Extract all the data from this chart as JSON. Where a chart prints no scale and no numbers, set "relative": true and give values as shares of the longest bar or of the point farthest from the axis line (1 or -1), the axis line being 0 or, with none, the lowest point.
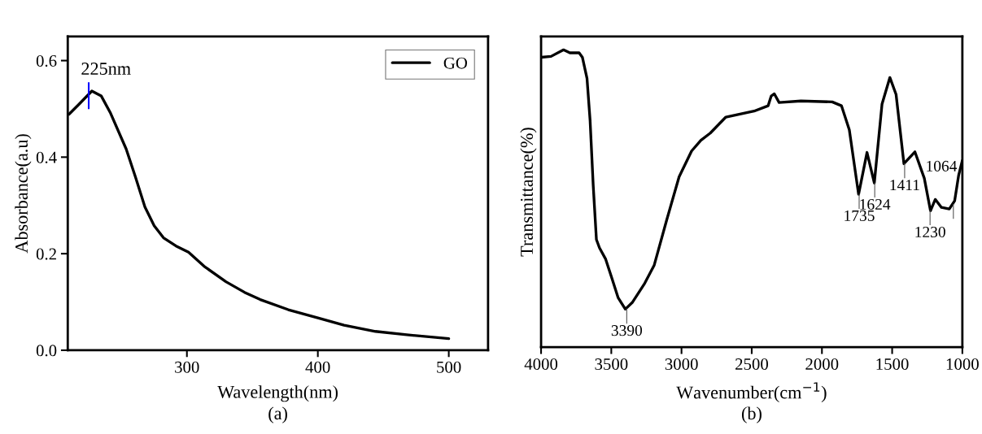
{
  "chart_data": [
    {
      "type": "line",
      "xlabel": "Wavelength(nm)",
      "ylabel": "Absorbance(a.u)",
      "xlim": [
        209,
        530
      ],
      "xticks": [
        300,
        400,
        500
      ],
      "ylim": [
        0,
        0.65
      ],
      "yticks": [
        {
          "value": 0,
          "label": "0.0"
        },
        0.2,
        0.4,
        0.6
      ],
      "grid": false,
      "legend": "top right",
      "marker": "none",
      "line_style": "solid",
      "series": [
        {
          "name": "GO",
          "color": "#000000",
          "x": [
            210,
            216.7,
            227.4,
            234.5,
            241.7,
            253.6,
            260.7,
            267.9,
            275,
            282.1,
            291.7,
            301.2,
            313.1,
            329.8,
            344,
            356,
            377.4,
            400,
            420,
            444,
            467.9,
            500
          ],
          "values": [
            0.489,
            0.507,
            0.537,
            0.527,
            0.491,
            0.417,
            0.359,
            0.297,
            0.258,
            0.233,
            0.216,
            0.203,
            0.174,
            0.142,
            0.12,
            0.105,
            0.084,
            0.067,
            0.052,
            0.039,
            0.032,
            0.024
          ]
        }
      ],
      "annotations": [
        {
          "text": "225nm",
          "x": 225,
          "y": 0.537
        },
        "(a)"
      ]
    },
    {
      "type": "line",
      "relative": true,
      "xlabel": "Wavenumber(cm$^{−1}$)",
      "ylabel": "Transmittance(%)",
      "tick_labels": "x",
      "xlim": [
        4000,
        1000
      ],
      "xticks": [
        4000,
        3500,
        3000,
        2500,
        2000,
        1500,
        1000
      ],
      "grid": false,
      "marker": "none",
      "line_style": "solid",
      "series": [
        {
          "color": "#000000",
          "x": [
            4000,
            3929,
            3840,
            3795,
            3729,
            3706,
            3673,
            3651,
            3629,
            3606,
            3584,
            3540,
            3495,
            3451,
            3400,
            3351,
            3262,
            3195,
            3106,
            3017,
            2928,
            2862,
            2795,
            2684,
            2483,
            2383,
            2361,
            2339,
            2305,
            2150,
            1927,
            1861,
            1805,
            1739,
            1679,
            1627,
            1572,
            1516,
            1472,
            1416,
            1338,
            1271,
            1227,
            1193,
            1149,
            1093,
            1055,
            1026,
            1000
          ],
          "values": [
            0.975,
            0.978,
            1,
            0.99,
            0.99,
            0.975,
            0.904,
            0.763,
            0.546,
            0.362,
            0.334,
            0.296,
            0.231,
            0.166,
            0.128,
            0.15,
            0.215,
            0.275,
            0.427,
            0.573,
            0.66,
            0.696,
            0.72,
            0.774,
            0.794,
            0.812,
            0.845,
            0.852,
            0.823,
            0.828,
            0.825,
            0.812,
            0.731,
            0.514,
            0.655,
            0.552,
            0.818,
            0.907,
            0.85,
            0.617,
            0.657,
            0.568,
            0.459,
            0.497,
            0.47,
            0.465,
            0.492,
            0.579,
            0.628
          ]
        }
      ],
      "annotations": [
        {
          "text": "3390",
          "x": 3390,
          "y": 0.128
        },
        {
          "text": "1735",
          "x": 1735,
          "y": 0.514
        },
        {
          "text": "1624",
          "x": 1624,
          "y": 0.552
        },
        {
          "text": "1411",
          "x": 1411,
          "y": 0.617
        },
        {
          "text": "1230",
          "x": 1230,
          "y": 0.459
        },
        {
          "text": "1064",
          "x": 1064,
          "y": 0.48
        },
        "(b)"
      ]
    }
  ]
}
